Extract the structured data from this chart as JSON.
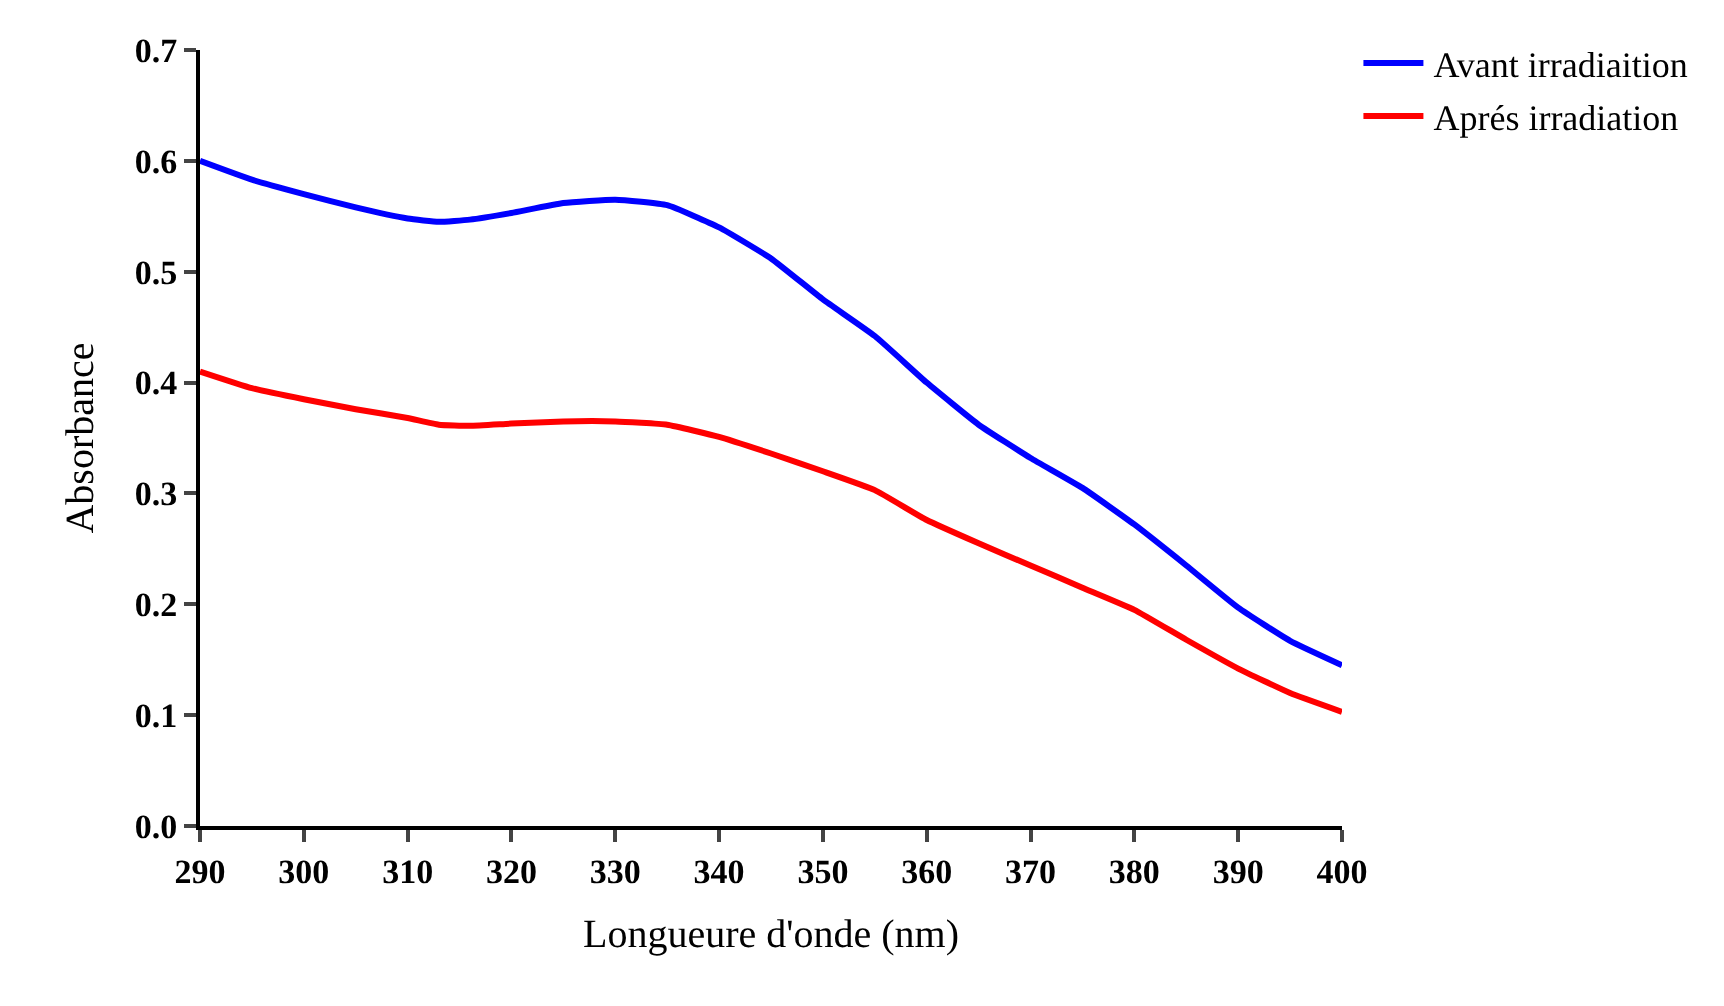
{
  "chart_data": {
    "type": "line",
    "xlabel": "Longueure d'onde (nm)",
    "ylabel": "Absorbance",
    "x": [
      290,
      295,
      300,
      305,
      310,
      313,
      316,
      320,
      325,
      330,
      335,
      340,
      345,
      350,
      355,
      360,
      365,
      370,
      375,
      380,
      385,
      390,
      395,
      400
    ],
    "series": [
      {
        "name": "Avant irradiaition",
        "color": "#0000ff",
        "values": [
          0.6,
          0.583,
          0.57,
          0.558,
          0.548,
          0.545,
          0.547,
          0.553,
          0.562,
          0.565,
          0.56,
          0.54,
          0.512,
          0.475,
          0.442,
          0.4,
          0.362,
          0.332,
          0.305,
          0.272,
          0.235,
          0.197,
          0.167,
          0.145
        ]
      },
      {
        "name": "Aprés irradiation",
        "color": "#ff0000",
        "values": [
          0.41,
          0.395,
          0.385,
          0.376,
          0.368,
          0.362,
          0.361,
          0.363,
          0.365,
          0.365,
          0.362,
          0.351,
          0.336,
          0.32,
          0.303,
          0.276,
          0.255,
          0.235,
          0.215,
          0.195,
          0.168,
          0.142,
          0.12,
          0.103
        ]
      }
    ],
    "xlim": [
      290,
      400
    ],
    "xticks": [
      290,
      300,
      310,
      320,
      330,
      340,
      350,
      360,
      370,
      380,
      390,
      400
    ],
    "ylim": [
      0,
      0.7
    ],
    "yticks": [
      {
        "value": 0,
        "label": "0.0"
      },
      0.1,
      0.2,
      0.3,
      0.4,
      0.5,
      0.6,
      0.7
    ],
    "legend": "top right",
    "marker": "none",
    "line_style": "solid"
  }
}
